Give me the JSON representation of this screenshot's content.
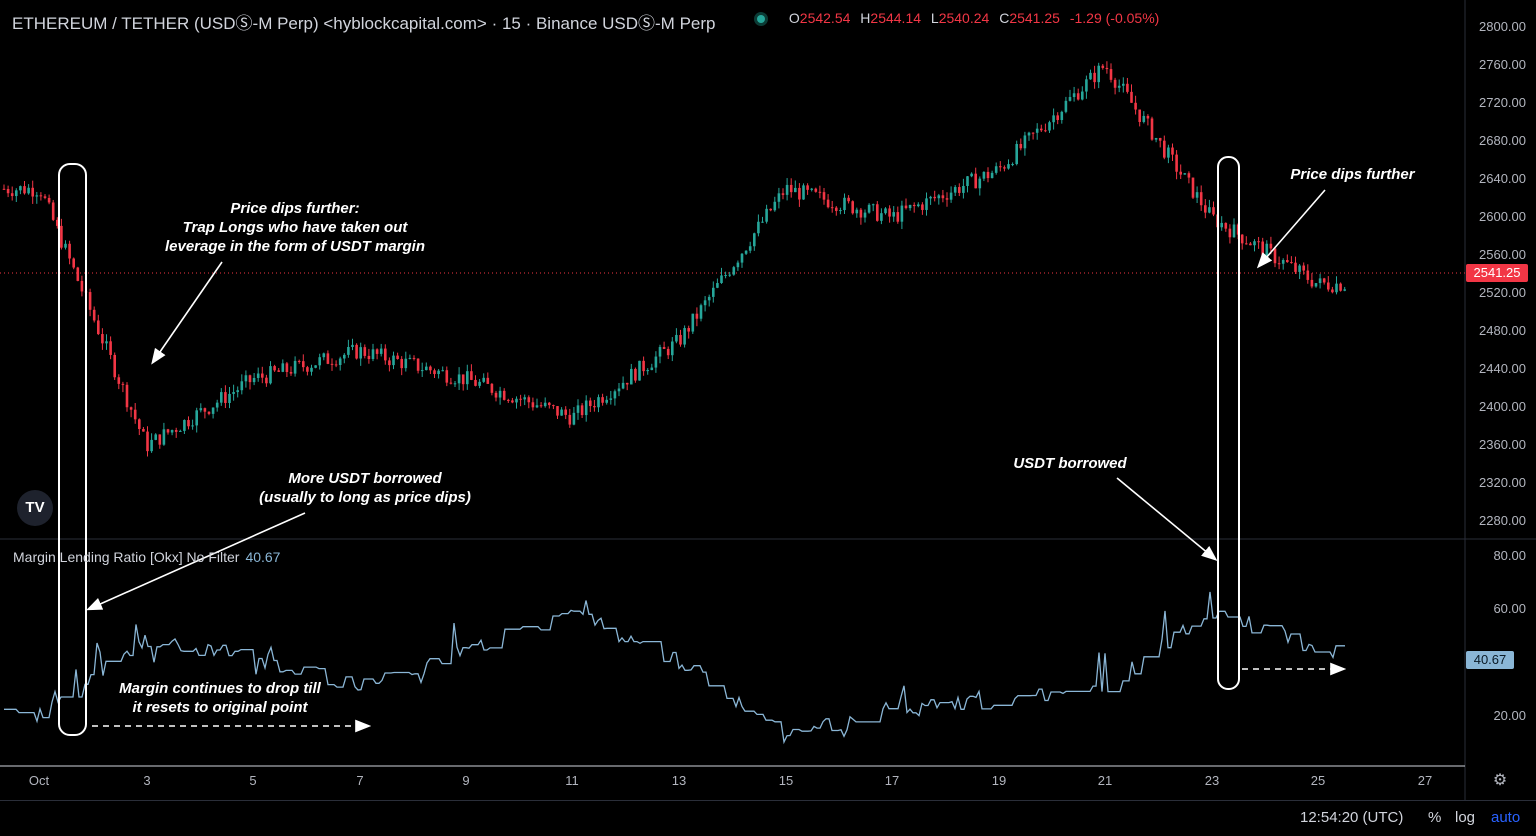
{
  "header": {
    "title": "ETHEREUM / TETHER (USDⓈ-M Perp) <hyblockcapital.com> · 15 · Binance USDⓈ-M Perp",
    "open_label": "O",
    "open": "2542.54",
    "high_label": "H",
    "high": "2544.14",
    "low_label": "L",
    "low": "2540.24",
    "close_label": "C",
    "close": "2541.25",
    "change": "-1.29 (-0.05%)"
  },
  "price_axis": {
    "ticks": [
      "2800.00",
      "2760.00",
      "2720.00",
      "2680.00",
      "2640.00",
      "2600.00",
      "2560.00",
      "2520.00",
      "2480.00",
      "2440.00",
      "2400.00",
      "2360.00",
      "2320.00",
      "2280.00"
    ],
    "last_price": "2541.25"
  },
  "indicator": {
    "title": "Margin Lending Ratio [Okx] No Filter",
    "value": "40.67",
    "ticks": [
      "80.00",
      "60.00",
      "20.00"
    ]
  },
  "x_axis": {
    "ticks": [
      "Oct",
      "3",
      "5",
      "7",
      "9",
      "11",
      "13",
      "15",
      "17",
      "19",
      "21",
      "23",
      "25",
      "27"
    ]
  },
  "annotations": {
    "a1_line1": "Price dips further:",
    "a1_line2": "Trap Longs who have taken out",
    "a1_line3": "leverage in the form of USDT margin",
    "a2_line1": "More USDT borrowed",
    "a2_line2": "(usually to long as price dips)",
    "a3_line1": "Margin continues to drop till",
    "a3_line2": "it resets to original point",
    "a4": "USDT borrowed",
    "a5": "Price dips further"
  },
  "footer": {
    "clock": "12:54:20 (UTC)",
    "percent": "%",
    "log": "log",
    "auto": "auto"
  },
  "logo": "TV",
  "colors": {
    "up": "#26a69a",
    "down": "#f23645",
    "indicator": "#8ab6d6",
    "last_price": "#f23645"
  },
  "icons": {
    "settings": "gear-icon"
  },
  "chart_data": {
    "type": "line",
    "x_dates": [
      "Oct 1",
      "Oct 3",
      "Oct 5",
      "Oct 7",
      "Oct 9",
      "Oct 11",
      "Oct 13",
      "Oct 15",
      "Oct 17",
      "Oct 19",
      "Oct 21",
      "Oct 23",
      "Oct 25"
    ],
    "series": [
      {
        "values": [
          2630,
          2360,
          2430,
          2460,
          2430,
          2390,
          2470,
          2630,
          2600,
          2650,
          2760,
          2600,
          2530
        ]
      },
      {
        "values": [
          20,
          48,
          42,
          30,
          45,
          58,
          40,
          12,
          22,
          25,
          30,
          60,
          44
        ]
      }
    ],
    "ylim": [
      2260,
      2810
    ],
    "last_close": 2541.25,
    "indicator_ylim": [
      5,
      85
    ]
  }
}
